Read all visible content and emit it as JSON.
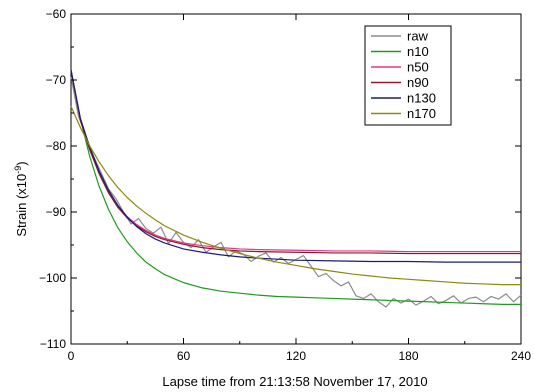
{
  "chart_data": {
    "type": "line",
    "title": "",
    "xlabel": "Lapse time from 21:13:58 November 17, 2010",
    "ylabel": "Strain (x10^-9)",
    "ylabel_base": "Strain (x10",
    "ylabel_exp": "-9",
    "ylabel_close": ")",
    "xlim": [
      0,
      240
    ],
    "ylim": [
      -110,
      -60
    ],
    "x_ticks": [
      0,
      60,
      120,
      180,
      240
    ],
    "x_tick_labels": [
      "0",
      "60",
      "120",
      "180",
      "240"
    ],
    "y_ticks": [
      -110,
      -100,
      -90,
      -80,
      -70,
      -60
    ],
    "y_tick_labels": [
      "−110",
      "−100",
      "−90",
      "−80",
      "−70",
      "−60"
    ],
    "grid": false,
    "legend_position": "top-right",
    "series": [
      {
        "name": "raw",
        "color": "#8c8c8c",
        "x": [
          0,
          4,
          8,
          12,
          16,
          20,
          24,
          28,
          32,
          36,
          40,
          44,
          48,
          52,
          56,
          60,
          64,
          68,
          72,
          76,
          80,
          84,
          88,
          92,
          96,
          100,
          104,
          108,
          112,
          116,
          120,
          124,
          128,
          132,
          136,
          140,
          144,
          148,
          152,
          156,
          160,
          164,
          168,
          172,
          176,
          180,
          184,
          188,
          192,
          196,
          200,
          204,
          208,
          212,
          216,
          220,
          224,
          228,
          232,
          236,
          240
        ],
        "y": [
          -69.5,
          -75.5,
          -78.5,
          -81.5,
          -84,
          -86.5,
          -88,
          -90,
          -91.8,
          -91,
          -92.5,
          -93.2,
          -92.3,
          -94.8,
          -93.1,
          -94.6,
          -95.4,
          -94.2,
          -96.1,
          -95.3,
          -94.6,
          -96.8,
          -95.9,
          -96.4,
          -97.5,
          -96.7,
          -96.2,
          -97.6,
          -96.9,
          -97.8,
          -97.2,
          -96.6,
          -98.2,
          -99.8,
          -99.3,
          -100.4,
          -101.2,
          -100.6,
          -102.7,
          -103.1,
          -102.4,
          -103.6,
          -104.4,
          -103.1,
          -103.8,
          -103.2,
          -104.1,
          -103.5,
          -102.8,
          -103.9,
          -103.4,
          -102.7,
          -103.8,
          -103.1,
          -102.9,
          -103.6,
          -102.8,
          -103.2,
          -102.4,
          -103.6,
          -102.6
        ]
      },
      {
        "name": "n10",
        "color": "#1f9a1f",
        "x": [
          0,
          5,
          10,
          15,
          20,
          25,
          30,
          35,
          40,
          45,
          50,
          55,
          60,
          70,
          80,
          90,
          100,
          110,
          120,
          130,
          140,
          150,
          160,
          170,
          180,
          190,
          200,
          210,
          220,
          230,
          240
        ],
        "y": [
          -68.5,
          -75.9,
          -81.6,
          -86.1,
          -89.6,
          -92.4,
          -94.5,
          -96.2,
          -97.6,
          -98.6,
          -99.5,
          -100.1,
          -100.7,
          -101.5,
          -102.0,
          -102.3,
          -102.6,
          -102.8,
          -102.9,
          -103.0,
          -103.1,
          -103.2,
          -103.3,
          -103.4,
          -103.5,
          -103.6,
          -103.7,
          -103.8,
          -103.9,
          -104.0,
          -104.0
        ]
      },
      {
        "name": "n50",
        "color": "#e8338a",
        "x": [
          0,
          5,
          10,
          15,
          20,
          25,
          30,
          35,
          40,
          45,
          50,
          60,
          70,
          80,
          90,
          100,
          120,
          140,
          160,
          180,
          200,
          220,
          240
        ],
        "y": [
          -68.5,
          -76.0,
          -80.5,
          -84.0,
          -86.9,
          -89.1,
          -90.7,
          -91.9,
          -92.8,
          -93.5,
          -94.0,
          -94.7,
          -95.1,
          -95.4,
          -95.6,
          -95.7,
          -95.8,
          -95.9,
          -95.9,
          -96.0,
          -96.0,
          -96.0,
          -96.0
        ]
      },
      {
        "name": "n90",
        "color": "#8a1a2a",
        "x": [
          0,
          5,
          10,
          15,
          20,
          25,
          30,
          35,
          40,
          45,
          50,
          60,
          70,
          80,
          90,
          100,
          120,
          140,
          160,
          180,
          200,
          220,
          240
        ],
        "y": [
          -68.5,
          -76.1,
          -80.6,
          -84.2,
          -87.1,
          -89.3,
          -90.9,
          -92.1,
          -93.0,
          -93.7,
          -94.2,
          -94.9,
          -95.4,
          -95.7,
          -95.9,
          -96.0,
          -96.1,
          -96.2,
          -96.2,
          -96.3,
          -96.3,
          -96.3,
          -96.3
        ]
      },
      {
        "name": "n130",
        "color": "#1a1a80",
        "x": [
          0,
          5,
          10,
          15,
          20,
          25,
          30,
          35,
          40,
          45,
          50,
          60,
          70,
          80,
          90,
          100,
          120,
          140,
          160,
          180,
          200,
          220,
          240
        ],
        "y": [
          -68.5,
          -75.8,
          -80.2,
          -83.8,
          -86.7,
          -89.0,
          -90.8,
          -92.2,
          -93.3,
          -94.1,
          -94.7,
          -95.6,
          -96.1,
          -96.5,
          -96.8,
          -97.0,
          -97.3,
          -97.4,
          -97.5,
          -97.5,
          -97.6,
          -97.6,
          -97.6
        ]
      },
      {
        "name": "n170",
        "color": "#8b8a10",
        "x": [
          0,
          5,
          10,
          15,
          20,
          25,
          30,
          35,
          40,
          45,
          50,
          60,
          70,
          80,
          90,
          100,
          110,
          120,
          130,
          140,
          150,
          160,
          170,
          180,
          190,
          200,
          210,
          220,
          230,
          240
        ],
        "y": [
          -74.0,
          -77.2,
          -80.0,
          -82.4,
          -84.5,
          -86.3,
          -87.8,
          -89.1,
          -90.2,
          -91.2,
          -92.1,
          -93.5,
          -94.6,
          -95.5,
          -96.3,
          -97.0,
          -97.6,
          -98.1,
          -98.6,
          -99.0,
          -99.4,
          -99.7,
          -100.0,
          -100.2,
          -100.4,
          -100.6,
          -100.8,
          -100.9,
          -101.0,
          -101.0
        ]
      }
    ]
  }
}
